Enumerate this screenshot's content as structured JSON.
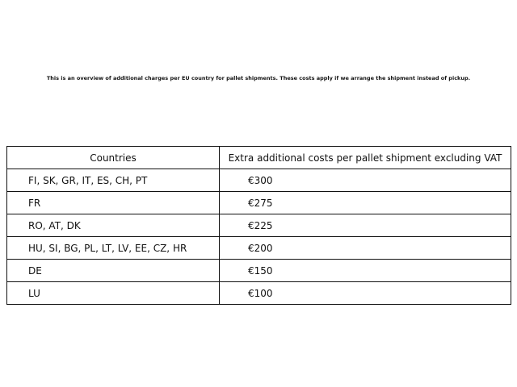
{
  "intro": "This is an overview of additional charges per EU country for pallet shipments. These costs apply if we arrange the shipment instead of pickup.",
  "table": {
    "headers": [
      "Countries",
      "Extra additional costs per pallet shipment excluding VAT"
    ],
    "rows": [
      [
        "FI, SK, GR, IT, ES, CH, PT",
        "€300"
      ],
      [
        "FR",
        "€275"
      ],
      [
        "RO, AT, DK",
        "€225"
      ],
      [
        "HU, SI, BG, PL, LT, LV, EE, CZ, HR",
        "€200"
      ],
      [
        "DE",
        "€150"
      ],
      [
        "LU",
        "€100"
      ]
    ]
  }
}
